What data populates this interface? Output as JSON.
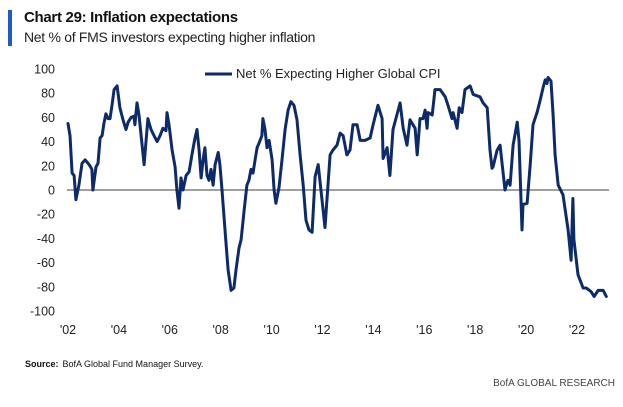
{
  "header": {
    "title": "Chart 29: Inflation expectations",
    "subtitle": "Net % of FMS investors expecting higher inflation"
  },
  "footer": {
    "source_label": "Source:",
    "source_text": "BofA Global Fund Manager Survey.",
    "brand": "BofA GLOBAL RESEARCH"
  },
  "chart_data": {
    "type": "line",
    "title": "Chart 29: Inflation expectations",
    "subtitle": "Net % of FMS investors expecting higher inflation",
    "xlabel": "",
    "ylabel": "",
    "xlim": [
      2002,
      2023.3
    ],
    "ylim": [
      -100,
      100
    ],
    "yticks": [
      100,
      80,
      60,
      40,
      20,
      0,
      -20,
      -40,
      -60,
      -80,
      -100
    ],
    "xticks": [
      2002,
      2004,
      2006,
      2008,
      2010,
      2012,
      2014,
      2016,
      2018,
      2020,
      2022
    ],
    "xtick_labels": [
      "'02",
      "'04",
      "'06",
      "'08",
      "'10",
      "'12",
      "'14",
      "'16",
      "'18",
      "'20",
      "'22"
    ],
    "grid": false,
    "zero_line": true,
    "legend_position": "top-center",
    "line_color": "#0d2a6b",
    "zero_line_color": "#808080",
    "series": [
      {
        "name": "Net % Expecting Higher Global CPI",
        "x": [
          2002.0,
          2002.08,
          2002.16,
          2002.24,
          2002.31,
          2002.43,
          2002.55,
          2002.67,
          2002.79,
          2002.86,
          2002.94,
          2002.98,
          2003.1,
          2003.18,
          2003.26,
          2003.34,
          2003.41,
          2003.49,
          2003.57,
          2003.65,
          2003.73,
          2003.81,
          2003.93,
          2004.04,
          2004.16,
          2004.28,
          2004.36,
          2004.48,
          2004.59,
          2004.63,
          2004.71,
          2004.79,
          2004.91,
          2004.99,
          2005.07,
          2005.14,
          2005.26,
          2005.38,
          2005.5,
          2005.62,
          2005.73,
          2005.85,
          2005.89,
          2005.97,
          2006.09,
          2006.21,
          2006.28,
          2006.36,
          2006.44,
          2006.52,
          2006.64,
          2006.76,
          2006.87,
          2006.99,
          2007.07,
          2007.15,
          2007.23,
          2007.31,
          2007.38,
          2007.46,
          2007.54,
          2007.62,
          2007.7,
          2007.78,
          2007.9,
          2007.97,
          2008.05,
          2008.17,
          2008.29,
          2008.41,
          2008.52,
          2008.6,
          2008.72,
          2008.8,
          2008.92,
          2009.03,
          2009.11,
          2009.19,
          2009.27,
          2009.35,
          2009.43,
          2009.55,
          2009.62,
          2009.66,
          2009.74,
          2009.82,
          2009.9,
          2010.02,
          2010.1,
          2010.17,
          2010.29,
          2010.41,
          2010.53,
          2010.65,
          2010.76,
          2010.88,
          2011.0,
          2011.12,
          2011.24,
          2011.35,
          2011.47,
          2011.59,
          2011.71,
          2011.83,
          2012.1,
          2012.3,
          2012.41,
          2012.57,
          2012.69,
          2012.81,
          2012.96,
          2013.08,
          2013.2,
          2013.36,
          2013.48,
          2013.67,
          2013.87,
          2013.99,
          2014.18,
          2014.34,
          2014.38,
          2014.54,
          2014.65,
          2014.77,
          2015.05,
          2015.17,
          2015.32,
          2015.44,
          2015.64,
          2015.72,
          2015.83,
          2015.95,
          2016.03,
          2016.11,
          2016.15,
          2016.31,
          2016.42,
          2016.62,
          2016.82,
          2016.93,
          2017.09,
          2017.13,
          2017.29,
          2017.37,
          2017.48,
          2017.6,
          2017.8,
          2017.92,
          2018.19,
          2018.31,
          2018.47,
          2018.58,
          2018.66,
          2018.7,
          2018.86,
          2018.98,
          2019.06,
          2019.17,
          2019.25,
          2019.29,
          2019.37,
          2019.49,
          2019.65,
          2019.72,
          2019.84,
          2019.88,
          2020.04,
          2020.16,
          2020.27,
          2020.43,
          2020.55,
          2020.67,
          2020.75,
          2020.82,
          2020.86,
          2020.98,
          2021.06,
          2021.14,
          2021.26,
          2021.45,
          2021.65,
          2021.77,
          2021.84,
          2021.88,
          2022.04,
          2022.24,
          2022.36,
          2022.55,
          2022.67,
          2022.83,
          2023.03,
          2023.15
        ],
        "values": [
          55,
          45,
          14,
          12,
          -8,
          4,
          22,
          25,
          22,
          20,
          17,
          0,
          19,
          22,
          43,
          45,
          55,
          63,
          59,
          59,
          70,
          83,
          86,
          68,
          58,
          50,
          56,
          60,
          61,
          54,
          72,
          62,
          37,
          21,
          41,
          59,
          50,
          45,
          40,
          45,
          51,
          49,
          64,
          54,
          33,
          19,
          0,
          -15,
          10,
          0,
          12,
          15,
          29,
          43,
          50,
          33,
          10,
          25,
          35,
          12,
          8,
          17,
          4,
          21,
          31,
          21,
          0,
          -33,
          -66,
          -83,
          -81,
          -66,
          -48,
          -41,
          -17,
          4,
          8,
          17,
          14,
          25,
          35,
          41,
          45,
          59,
          50,
          35,
          41,
          25,
          0,
          -11,
          2,
          25,
          50,
          66,
          73,
          70,
          58,
          29,
          4,
          -25,
          -33,
          -35,
          11,
          21,
          -31,
          29,
          33,
          37,
          47,
          45,
          29,
          33,
          54,
          54,
          41,
          41,
          43,
          54,
          70,
          59,
          26,
          35,
          12,
          50,
          72,
          51,
          37,
          58,
          51,
          29,
          59,
          59,
          66,
          51,
          64,
          62,
          83,
          83,
          77,
          70,
          59,
          64,
          51,
          68,
          64,
          83,
          86,
          79,
          77,
          72,
          68,
          33,
          18,
          19,
          33,
          37,
          21,
          0,
          6,
          8,
          4,
          37,
          56,
          41,
          -33,
          -12,
          -11,
          21,
          54,
          64,
          74,
          85,
          91,
          88,
          93,
          90,
          62,
          29,
          4,
          -4,
          -33,
          -58,
          -7,
          -41,
          -70,
          -81,
          -81,
          -84,
          -88,
          -83,
          -83,
          -88
        ]
      }
    ]
  }
}
